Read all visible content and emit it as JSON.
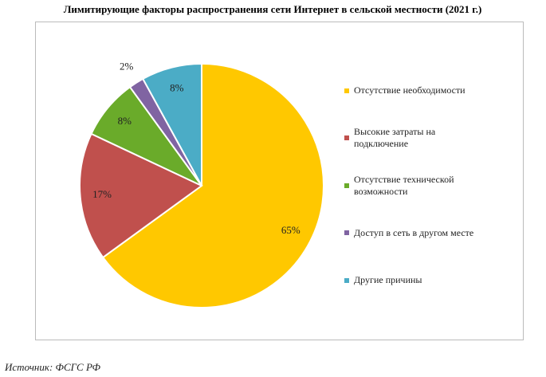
{
  "chart_data": {
    "type": "pie",
    "title": "Лимитирующие факторы распространения сети Интернет в сельской местности (2021 г.)",
    "categories": [
      "Отсутствие необходимости",
      "Высокие затраты на подключение",
      "Отсутствие технической возможности",
      "Доступ в сеть в другом месте",
      "Другие причины"
    ],
    "values": [
      65,
      17,
      8,
      2,
      8
    ],
    "value_labels": [
      "65%",
      "17%",
      "8%",
      "2%",
      "8%"
    ],
    "colors": [
      "#ffc800",
      "#c0504d",
      "#6aab2a",
      "#8064a2",
      "#4bacc6"
    ],
    "legend": "right"
  },
  "source": "Источник: ФСГС РФ"
}
